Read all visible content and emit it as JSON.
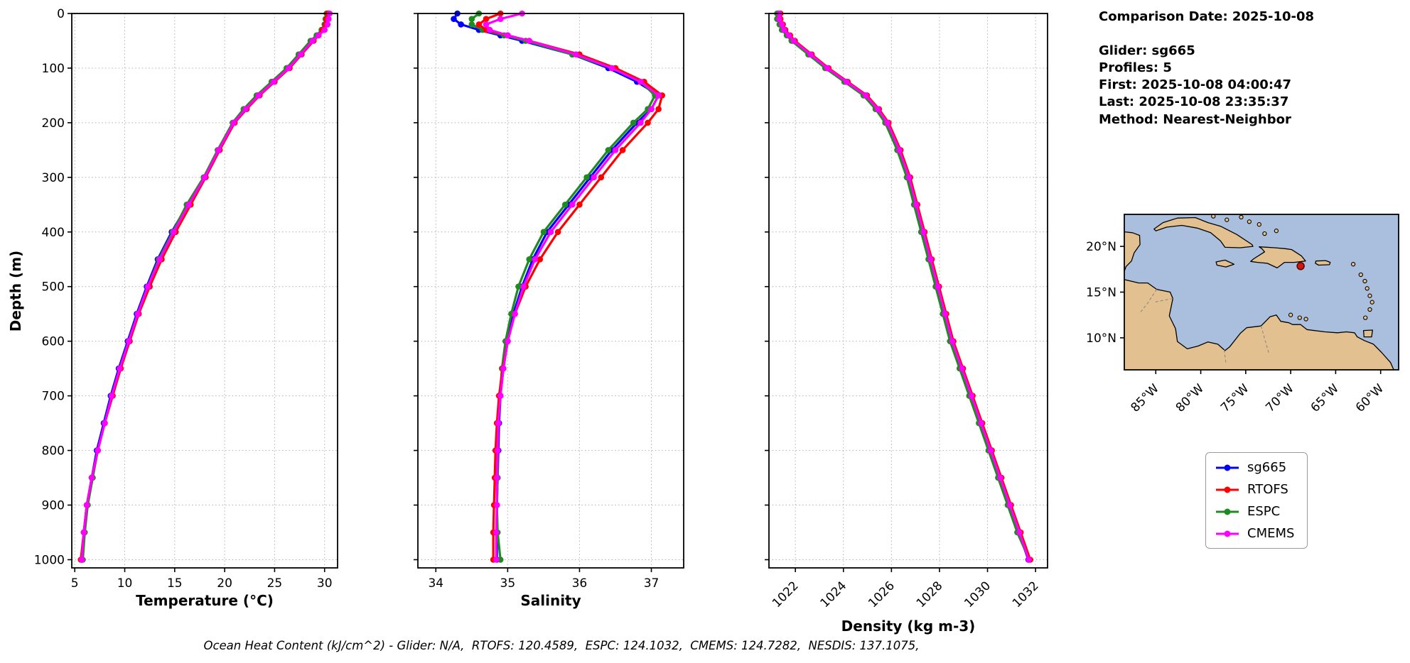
{
  "ylabel": "Depth (m)",
  "info_panel": {
    "comparison_date": "Comparison Date: 2025-10-08",
    "glider": "Glider: sg665",
    "profiles": "Profiles: 5",
    "first": "First: 2025-10-08 04:00:47",
    "last": "Last: 2025-10-08 23:35:37",
    "method": "Method: Nearest-Neighbor"
  },
  "legend": {
    "items": [
      {
        "label": "sg665",
        "color": "#0000ff"
      },
      {
        "label": "RTOFS",
        "color": "#ff0000"
      },
      {
        "label": "ESPC",
        "color": "#1e8b1e"
      },
      {
        "label": "CMEMS",
        "color": "#ff00ff"
      }
    ]
  },
  "map": {
    "lon_ticks": [
      "85°W",
      "80°W",
      "75°W",
      "70°W",
      "65°W",
      "60°W"
    ],
    "lat_ticks": [
      "20°N",
      "15°N",
      "10°N"
    ],
    "marker": {
      "lon": -68.9,
      "lat": 17.85,
      "color": "#d11414"
    },
    "ocean_color": "#a9bfdd",
    "land_color": "#e3c08f"
  },
  "footer": {
    "ocean_heat_content": "Ocean Heat Content (kJ/cm^2) - Glider: N/A,  RTOFS: 120.4589,  ESPC: 124.1032,  CMEMS: 124.7282,  NESDIS: 137.1075,"
  },
  "chart_data": [
    {
      "type": "line",
      "xlabel": "Temperature (°C)",
      "ylabel": "Depth (m)",
      "xlim": [
        4.7,
        31.3
      ],
      "ylim": [
        0,
        1015
      ],
      "xticks": [
        5,
        10,
        15,
        20,
        25,
        30
      ],
      "yticks": [
        0,
        100,
        200,
        300,
        400,
        500,
        600,
        700,
        800,
        900,
        1000
      ],
      "y_inverted": true,
      "grid": true,
      "depths": [
        0,
        10,
        20,
        30,
        40,
        50,
        75,
        100,
        125,
        150,
        175,
        200,
        250,
        300,
        350,
        400,
        450,
        500,
        550,
        600,
        650,
        700,
        750,
        800,
        850,
        900,
        950,
        1000
      ],
      "series": [
        {
          "name": "sg665",
          "color": "#0000ff",
          "values": [
            30.4,
            30.3,
            30.2,
            29.9,
            29.3,
            28.7,
            27.5,
            26.3,
            24.8,
            23.3,
            22.0,
            20.9,
            19.4,
            18.0,
            16.3,
            14.7,
            13.3,
            12.2,
            11.2,
            10.3,
            9.4,
            8.6,
            7.9,
            7.2,
            6.7,
            6.2,
            5.9,
            5.7
          ]
        },
        {
          "name": "RTOFS",
          "color": "#ff0000",
          "values": [
            30.3,
            30.2,
            30.1,
            29.8,
            29.4,
            28.9,
            27.7,
            26.5,
            25.0,
            23.5,
            22.2,
            21.0,
            19.5,
            18.1,
            16.6,
            15.1,
            13.7,
            12.5,
            11.4,
            10.5,
            9.6,
            8.8,
            8.0,
            7.3,
            6.7,
            6.2,
            5.9,
            5.6
          ]
        },
        {
          "name": "ESPC",
          "color": "#1e8b1e",
          "values": [
            30.2,
            30.1,
            30.0,
            29.7,
            29.2,
            28.6,
            27.4,
            26.2,
            24.7,
            23.2,
            21.9,
            20.8,
            19.3,
            17.9,
            16.2,
            14.8,
            13.4,
            12.3,
            11.3,
            10.4,
            9.5,
            8.7,
            8.0,
            7.3,
            6.8,
            6.3,
            6.0,
            5.8
          ]
        },
        {
          "name": "CMEMS",
          "color": "#ff00ff",
          "values": [
            30.5,
            30.4,
            30.3,
            30.0,
            29.4,
            28.8,
            27.6,
            26.4,
            24.9,
            23.4,
            22.1,
            20.9,
            19.4,
            18.0,
            16.4,
            14.9,
            13.5,
            12.3,
            11.3,
            10.4,
            9.5,
            8.7,
            8.0,
            7.3,
            6.7,
            6.2,
            5.9,
            5.7
          ]
        }
      ]
    },
    {
      "type": "line",
      "xlabel": "Salinity",
      "ylabel": "Depth (m)",
      "xlim": [
        33.75,
        37.45
      ],
      "ylim": [
        0,
        1015
      ],
      "xticks": [
        34,
        35,
        36,
        37
      ],
      "yticks": [
        0,
        100,
        200,
        300,
        400,
        500,
        600,
        700,
        800,
        900,
        1000
      ],
      "y_inverted": true,
      "grid": true,
      "depths": [
        0,
        10,
        20,
        30,
        40,
        50,
        75,
        100,
        125,
        150,
        175,
        200,
        250,
        300,
        350,
        400,
        450,
        500,
        550,
        600,
        650,
        700,
        750,
        800,
        850,
        900,
        950,
        1000
      ],
      "series": [
        {
          "name": "sg665",
          "color": "#0000ff",
          "values": [
            34.3,
            34.25,
            34.35,
            34.6,
            34.9,
            35.2,
            35.9,
            36.4,
            36.8,
            37.1,
            37.0,
            36.8,
            36.45,
            36.15,
            35.85,
            35.55,
            35.35,
            35.2,
            35.08,
            35.0,
            34.94,
            34.9,
            34.88,
            34.87,
            34.86,
            34.85,
            34.85,
            34.85
          ]
        },
        {
          "name": "RTOFS",
          "color": "#ff0000",
          "values": [
            34.9,
            34.7,
            34.6,
            34.7,
            35.0,
            35.3,
            36.0,
            36.5,
            36.9,
            37.15,
            37.1,
            36.95,
            36.6,
            36.3,
            36.0,
            35.7,
            35.45,
            35.25,
            35.1,
            35.0,
            34.93,
            34.88,
            34.85,
            34.83,
            34.82,
            34.81,
            34.8,
            34.8
          ]
        },
        {
          "name": "ESPC",
          "color": "#1e8b1e",
          "values": [
            34.6,
            34.5,
            34.5,
            34.65,
            34.95,
            35.25,
            35.9,
            36.45,
            36.85,
            37.05,
            36.95,
            36.75,
            36.4,
            36.1,
            35.8,
            35.5,
            35.3,
            35.15,
            35.05,
            34.97,
            34.92,
            34.89,
            34.87,
            34.86,
            34.86,
            34.85,
            34.86,
            34.9
          ]
        },
        {
          "name": "CMEMS",
          "color": "#ff00ff",
          "values": [
            35.2,
            34.9,
            34.7,
            34.75,
            35.0,
            35.3,
            35.95,
            36.45,
            36.85,
            37.1,
            37.0,
            36.85,
            36.5,
            36.2,
            35.9,
            35.6,
            35.38,
            35.22,
            35.1,
            35.0,
            34.94,
            34.9,
            34.87,
            34.86,
            34.85,
            34.85,
            34.84,
            34.84
          ]
        }
      ]
    },
    {
      "type": "line",
      "xlabel": "Density (kg m-3)",
      "ylabel": "Depth (m)",
      "xlim": [
        1020.9,
        1032.5
      ],
      "ylim": [
        0,
        1015
      ],
      "xticks": [
        1022,
        1024,
        1026,
        1028,
        1030,
        1032
      ],
      "xtick_rotation": 45,
      "yticks": [
        0,
        100,
        200,
        300,
        400,
        500,
        600,
        700,
        800,
        900,
        1000
      ],
      "y_inverted": true,
      "grid": true,
      "depths": [
        0,
        10,
        20,
        30,
        40,
        50,
        75,
        100,
        125,
        150,
        175,
        200,
        250,
        300,
        350,
        400,
        450,
        500,
        550,
        600,
        650,
        700,
        750,
        800,
        850,
        900,
        950,
        1000
      ],
      "series": [
        {
          "name": "sg665",
          "color": "#0000ff",
          "values": [
            1021.3,
            1021.3,
            1021.4,
            1021.5,
            1021.7,
            1021.9,
            1022.6,
            1023.3,
            1024.1,
            1024.9,
            1025.4,
            1025.8,
            1026.3,
            1026.7,
            1027.0,
            1027.3,
            1027.6,
            1027.9,
            1028.2,
            1028.5,
            1028.9,
            1029.3,
            1029.7,
            1030.1,
            1030.5,
            1030.9,
            1031.3,
            1031.7
          ]
        },
        {
          "name": "RTOFS",
          "color": "#ff0000",
          "values": [
            1021.38,
            1021.38,
            1021.48,
            1021.58,
            1021.78,
            1021.98,
            1022.68,
            1023.38,
            1024.18,
            1024.98,
            1025.48,
            1025.88,
            1026.38,
            1026.78,
            1027.08,
            1027.38,
            1027.68,
            1027.98,
            1028.28,
            1028.58,
            1028.98,
            1029.38,
            1029.78,
            1030.18,
            1030.58,
            1030.98,
            1031.38,
            1031.78
          ]
        },
        {
          "name": "ESPC",
          "color": "#1e8b1e",
          "values": [
            1021.24,
            1021.24,
            1021.34,
            1021.44,
            1021.64,
            1021.84,
            1022.54,
            1023.24,
            1024.04,
            1024.84,
            1025.34,
            1025.74,
            1026.24,
            1026.64,
            1026.94,
            1027.24,
            1027.54,
            1027.84,
            1028.14,
            1028.44,
            1028.84,
            1029.24,
            1029.64,
            1030.04,
            1030.44,
            1030.84,
            1031.24,
            1031.74
          ]
        },
        {
          "name": "CMEMS",
          "color": "#ff00ff",
          "values": [
            1021.33,
            1021.33,
            1021.43,
            1021.53,
            1021.73,
            1021.93,
            1022.63,
            1023.33,
            1024.13,
            1024.93,
            1025.43,
            1025.83,
            1026.33,
            1026.73,
            1027.03,
            1027.33,
            1027.63,
            1027.93,
            1028.23,
            1028.53,
            1028.93,
            1029.33,
            1029.73,
            1030.13,
            1030.53,
            1030.93,
            1031.33,
            1031.72
          ]
        }
      ]
    }
  ]
}
